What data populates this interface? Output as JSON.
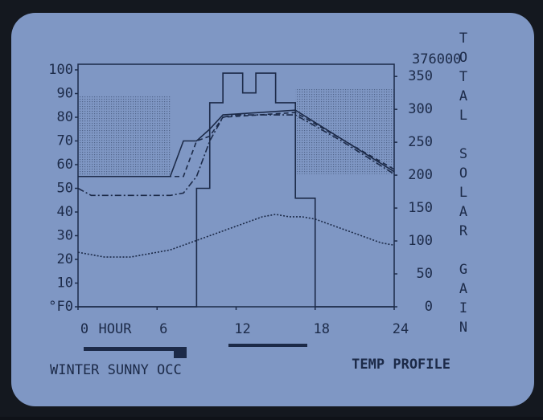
{
  "chart_data": {
    "type": "line",
    "title": "TEMP PROFILE",
    "subtitle": "WINTER SUNNY OCC",
    "x_label": "HOUR",
    "y2_label": "TOTAL SOLAR GAIN",
    "annotation": "376000",
    "xlim": [
      0,
      24
    ],
    "xticks": [
      0,
      6,
      12,
      18,
      24
    ],
    "ylim": [
      0,
      100
    ],
    "yticks": [
      {
        "value": 0,
        "label": "°F0"
      },
      10,
      20,
      30,
      40,
      50,
      60,
      70,
      80,
      90,
      100
    ],
    "y2lim": [
      0,
      360
    ],
    "y2ticks": [
      0,
      50,
      100,
      150,
      200,
      250,
      300,
      350
    ],
    "bands": [
      {
        "x": [
          0,
          7
        ],
        "y": [
          55,
          89
        ]
      },
      {
        "x": [
          16.5,
          24
        ],
        "y": [
          56,
          92
        ]
      }
    ],
    "series": [
      {
        "color": "#1c2a48",
        "style": "dotted",
        "x": [
          0,
          1,
          2,
          3,
          4,
          5,
          6,
          7,
          8,
          9,
          10,
          11,
          12,
          13,
          14,
          15,
          16,
          17,
          18,
          19,
          20,
          21,
          22,
          23,
          24
        ],
        "values": [
          23,
          22,
          21,
          21,
          21,
          22,
          23,
          24,
          26,
          28,
          30,
          32,
          34,
          36,
          38,
          39,
          38,
          38,
          37,
          35,
          33,
          31,
          29,
          27,
          26
        ]
      },
      {
        "color": "#1c2a48",
        "style": "dashdot",
        "x": [
          0,
          1,
          7,
          8,
          9,
          10,
          11,
          12,
          16.5,
          20,
          24
        ],
        "values": [
          50,
          47,
          47,
          48,
          55,
          70,
          80,
          81,
          81,
          70,
          56
        ]
      },
      {
        "color": "#1c2a48",
        "style": "dashed",
        "x": [
          0,
          8,
          9,
          10,
          11,
          16.5,
          24
        ],
        "values": [
          55,
          55,
          70,
          72,
          80,
          82,
          58
        ]
      },
      {
        "color": "#1c2a48",
        "style": "solid",
        "x": [
          0,
          7,
          8,
          9,
          10,
          11,
          16.5,
          24
        ],
        "values": [
          55,
          55,
          70,
          70,
          75,
          81,
          83,
          57
        ]
      },
      {
        "color": "#1c2a48",
        "style": "solid",
        "axis": "y2",
        "x": [
          0,
          9,
          9,
          10,
          10,
          11,
          11,
          12.5,
          12.5,
          13.5,
          13.5,
          15,
          15,
          16.5,
          16.5,
          18,
          18,
          24
        ],
        "values": [
          0,
          0,
          180,
          180,
          310,
          310,
          355,
          355,
          325,
          325,
          355,
          355,
          310,
          310,
          165,
          165,
          0,
          0
        ]
      }
    ]
  }
}
